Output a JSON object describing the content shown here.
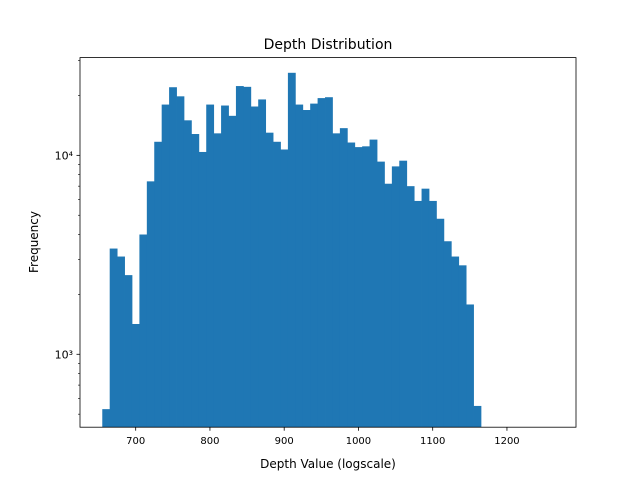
{
  "chart_data": {
    "type": "bar",
    "title": "Depth Distribution",
    "xlabel": "Depth Value (logscale)",
    "ylabel": "Frequency",
    "y_scale": "log",
    "xlim": [
      625,
      1293
    ],
    "ylim": [
      430,
      31000
    ],
    "grid": false,
    "bar_color": "#1f77b4",
    "x_ticks": [
      700,
      800,
      900,
      1000,
      1100,
      1200
    ],
    "y_ticks": [
      {
        "value": 1000,
        "label": "10³"
      },
      {
        "value": 10000,
        "label": "10⁴"
      }
    ],
    "bin_start": 655,
    "bin_width": 10,
    "values": [
      530,
      3400,
      3100,
      2500,
      1420,
      4000,
      7400,
      11700,
      18000,
      22000,
      19800,
      15000,
      12800,
      10400,
      18000,
      12900,
      17800,
      15800,
      22300,
      22100,
      17600,
      19100,
      13000,
      11700,
      10700,
      26000,
      18000,
      16900,
      18200,
      19400,
      19600,
      12900,
      13700,
      11600,
      11000,
      11100,
      12000,
      9300,
      7200,
      8800,
      9400,
      7000,
      5900,
      6800,
      5900,
      4800,
      3700,
      3100,
      2800,
      1780,
      550
    ]
  }
}
